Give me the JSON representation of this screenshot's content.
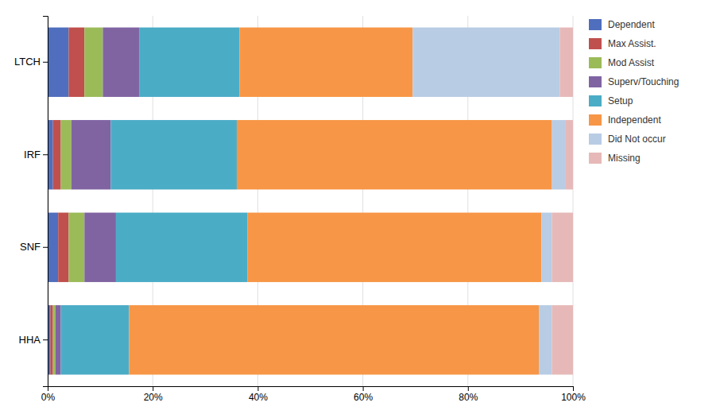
{
  "chart_data": {
    "type": "bar",
    "orientation": "horizontal",
    "stacked": true,
    "categories": [
      "LTCH",
      "IRF",
      "SNF",
      "HHA"
    ],
    "series": [
      {
        "name": "Dependent",
        "color": "#4F6EBD",
        "values": [
          4,
          1,
          2,
          0.5
        ]
      },
      {
        "name": "Max Assist.",
        "color": "#C0504D",
        "values": [
          3,
          1.5,
          2,
          0.5
        ]
      },
      {
        "name": "Mod Assist",
        "color": "#9BBB59",
        "values": [
          3.5,
          2,
          3,
          0.5
        ]
      },
      {
        "name": "Superv/Touching",
        "color": "#8064A2",
        "values": [
          7,
          7.5,
          6,
          1
        ]
      },
      {
        "name": "Setup",
        "color": "#4BACC6",
        "values": [
          19,
          24,
          25,
          13
        ]
      },
      {
        "name": "Independent",
        "color": "#F79646",
        "values": [
          33,
          60,
          56,
          78
        ]
      },
      {
        "name": "Did Not occur",
        "color": "#B8CCE4",
        "values": [
          28,
          2.5,
          2,
          2.5
        ]
      },
      {
        "name": "Missing",
        "color": "#E6B9B8",
        "values": [
          2.5,
          1.5,
          4,
          4
        ]
      }
    ],
    "xlim": [
      0,
      100
    ],
    "xticks": [
      {
        "value": 0,
        "label": "0%"
      },
      {
        "value": 20,
        "label": "20%"
      },
      {
        "value": 40,
        "label": "40%"
      },
      {
        "value": 60,
        "label": "60%"
      },
      {
        "value": 80,
        "label": "80%"
      },
      {
        "value": 100,
        "label": "100%"
      }
    ],
    "grid": true,
    "legend": "right"
  }
}
